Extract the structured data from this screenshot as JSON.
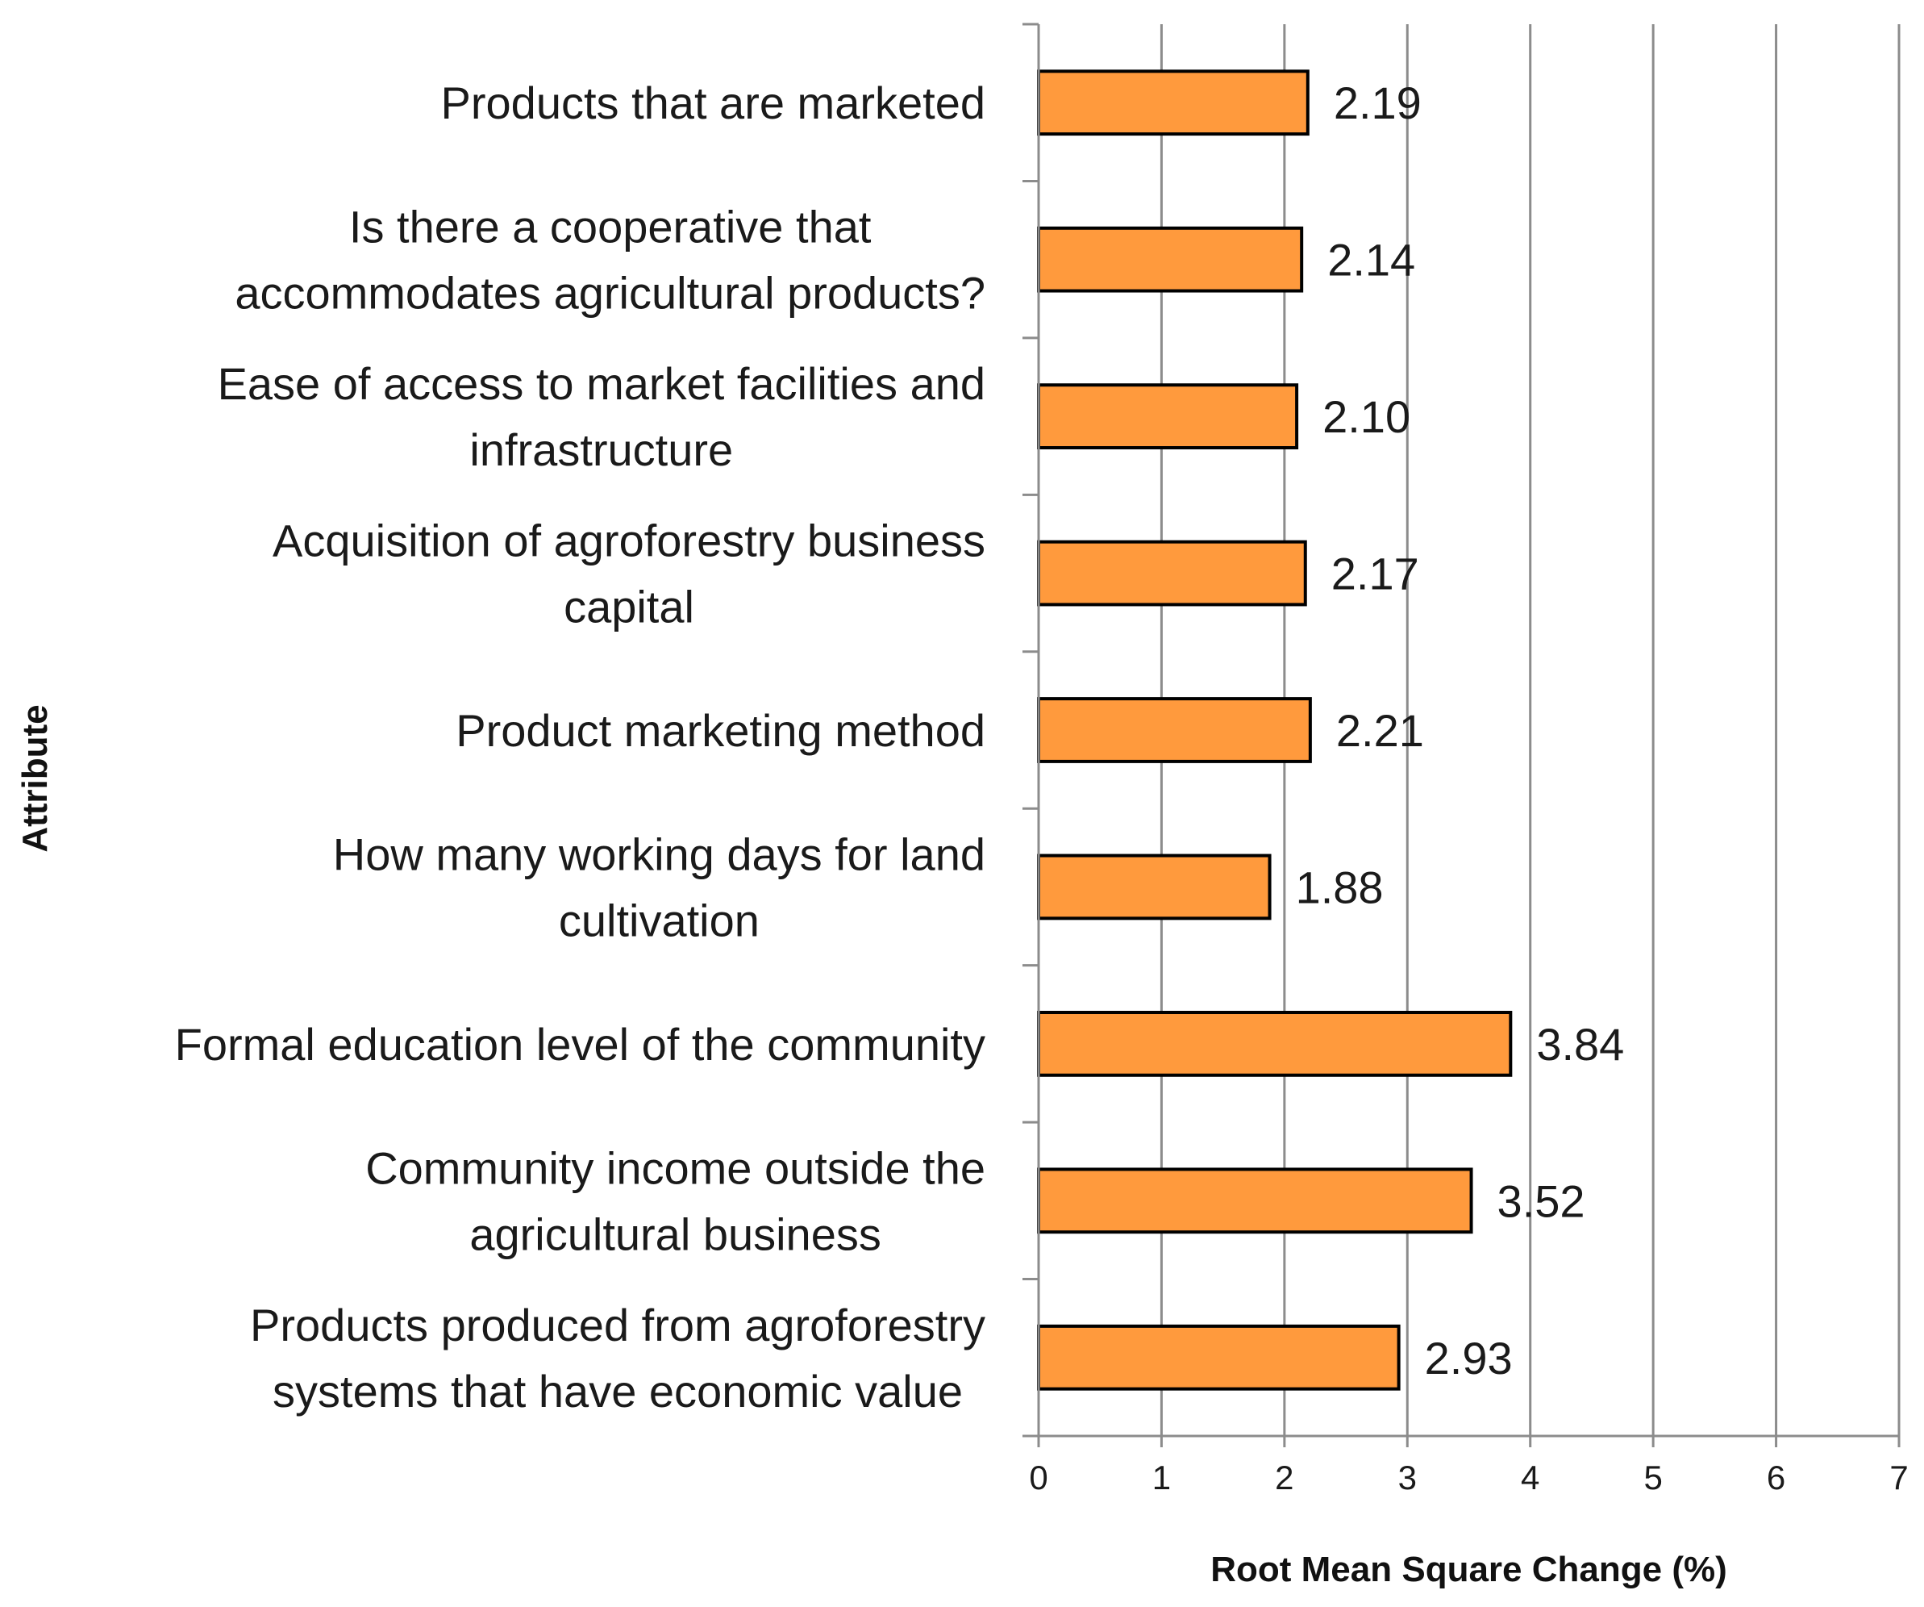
{
  "chart_data": {
    "type": "bar",
    "orientation": "horizontal",
    "categories": [
      [
        "Products that are marketed"
      ],
      [
        "Is there a cooperative that",
        "accommodates agricultural products?"
      ],
      [
        "Ease of access to market facilities and",
        "infrastructure"
      ],
      [
        "Acquisition of agroforestry business",
        "capital"
      ],
      [
        "Product marketing method"
      ],
      [
        "How many working days for land",
        "cultivation"
      ],
      [
        "Formal education level of the community"
      ],
      [
        "Community income outside the",
        "agricultural business"
      ],
      [
        "Products produced from agroforestry",
        "systems that have economic value"
      ]
    ],
    "values": [
      2.19,
      2.14,
      2.1,
      2.17,
      2.21,
      1.88,
      3.84,
      3.52,
      2.93
    ],
    "value_labels": [
      "2.19",
      "2.14",
      "2.10",
      "2.17",
      "2.21",
      "1.88",
      "3.84",
      "3.52",
      "2.93"
    ],
    "xlabel": "Root Mean Square Change (%)",
    "ylabel": "Attribute",
    "xlim": [
      0,
      7
    ],
    "xticks": [
      "0",
      "1",
      "2",
      "3",
      "4",
      "5",
      "6",
      "7"
    ],
    "grid": "vertical",
    "legend": "none",
    "bar_color": "#FF9A3D",
    "bar_edge_color": "#000000"
  }
}
